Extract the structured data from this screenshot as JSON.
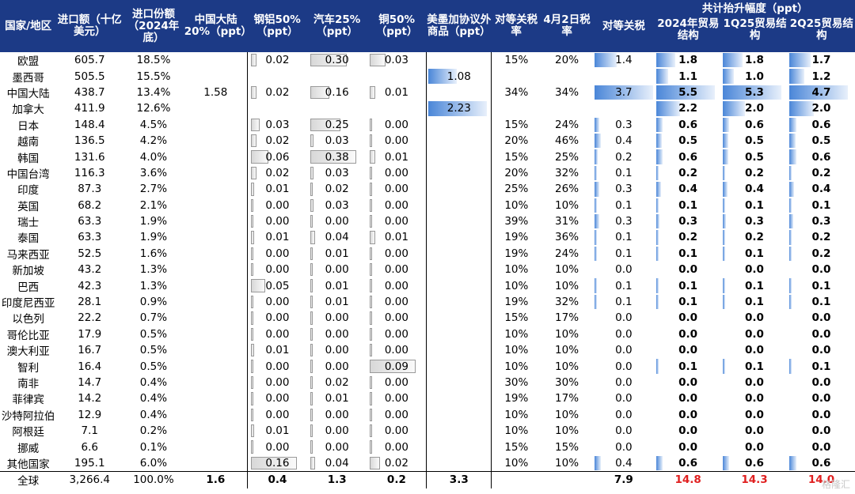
{
  "headers": {
    "country": "国家/地区",
    "import": "进口额（十亿美元）",
    "share": "进口份额（2024年底）",
    "china20": "中国大陆20%（ppt）",
    "steel": "钢铝50%（ppt）",
    "auto": "汽车25%（ppt）",
    "copper": "铜50%（ppt）",
    "usmca": "美墨加协议外商品（ppt）",
    "recip_rate": "对等关税率",
    "apr2": "4月2日税率",
    "recip": "对等关税",
    "total_group": "共计抬升幅度（ppt）",
    "y2024": "2024年贸易结构",
    "q1": "1Q25贸易结构",
    "q2": "2Q25贸易结构"
  },
  "rows": [
    {
      "name": "欧盟",
      "import": "605.7",
      "share": "18.5%",
      "china": "",
      "steel": "0.02",
      "auto": "0.30",
      "copper": "0.03",
      "usmca": "",
      "rate": "15%",
      "apr": "20%",
      "recip": "1.4",
      "t24": "1.8",
      "q1": "1.8",
      "q2": "1.7"
    },
    {
      "name": "墨西哥",
      "import": "505.5",
      "share": "15.5%",
      "china": "",
      "steel": "",
      "auto": "",
      "copper": "",
      "usmca": "1.08",
      "rate": "",
      "apr": "",
      "recip": "",
      "t24": "1.1",
      "q1": "1.0",
      "q2": "1.2"
    },
    {
      "name": "中国大陆",
      "import": "438.7",
      "share": "13.4%",
      "china": "1.58",
      "steel": "0.02",
      "auto": "0.16",
      "copper": "0.01",
      "usmca": "",
      "rate": "34%",
      "apr": "34%",
      "recip": "3.7",
      "t24": "5.5",
      "q1": "5.3",
      "q2": "4.7"
    },
    {
      "name": "加拿大",
      "import": "411.9",
      "share": "12.6%",
      "china": "",
      "steel": "",
      "auto": "",
      "copper": "",
      "usmca": "2.23",
      "rate": "",
      "apr": "",
      "recip": "",
      "t24": "2.2",
      "q1": "2.0",
      "q2": "2.0"
    },
    {
      "name": "日本",
      "import": "148.4",
      "share": "4.5%",
      "china": "",
      "steel": "0.03",
      "auto": "0.25",
      "copper": "0.00",
      "usmca": "",
      "rate": "15%",
      "apr": "24%",
      "recip": "0.3",
      "t24": "0.6",
      "q1": "0.6",
      "q2": "0.6"
    },
    {
      "name": "越南",
      "import": "136.5",
      "share": "4.2%",
      "china": "",
      "steel": "0.02",
      "auto": "0.03",
      "copper": "0.00",
      "usmca": "",
      "rate": "20%",
      "apr": "46%",
      "recip": "0.4",
      "t24": "0.5",
      "q1": "0.5",
      "q2": "0.5"
    },
    {
      "name": "韩国",
      "import": "131.6",
      "share": "4.0%",
      "china": "",
      "steel": "0.06",
      "auto": "0.38",
      "copper": "0.01",
      "usmca": "",
      "rate": "15%",
      "apr": "25%",
      "recip": "0.2",
      "t24": "0.6",
      "q1": "0.5",
      "q2": "0.6"
    },
    {
      "name": "中国台湾",
      "import": "116.3",
      "share": "3.6%",
      "china": "",
      "steel": "0.02",
      "auto": "0.03",
      "copper": "0.00",
      "usmca": "",
      "rate": "20%",
      "apr": "32%",
      "recip": "0.1",
      "t24": "0.2",
      "q1": "0.2",
      "q2": "0.2"
    },
    {
      "name": "印度",
      "import": "87.3",
      "share": "2.7%",
      "china": "",
      "steel": "0.01",
      "auto": "0.02",
      "copper": "0.00",
      "usmca": "",
      "rate": "25%",
      "apr": "26%",
      "recip": "0.3",
      "t24": "0.4",
      "q1": "0.4",
      "q2": "0.4"
    },
    {
      "name": "英国",
      "import": "68.2",
      "share": "2.1%",
      "china": "",
      "steel": "0.00",
      "auto": "0.03",
      "copper": "0.00",
      "usmca": "",
      "rate": "10%",
      "apr": "10%",
      "recip": "0.1",
      "t24": "0.1",
      "q1": "0.1",
      "q2": "0.1"
    },
    {
      "name": "瑞士",
      "import": "63.3",
      "share": "1.9%",
      "china": "",
      "steel": "0.00",
      "auto": "0.00",
      "copper": "0.00",
      "usmca": "",
      "rate": "39%",
      "apr": "31%",
      "recip": "0.3",
      "t24": "0.3",
      "q1": "0.3",
      "q2": "0.3"
    },
    {
      "name": "泰国",
      "import": "63.3",
      "share": "1.9%",
      "china": "",
      "steel": "0.01",
      "auto": "0.04",
      "copper": "0.01",
      "usmca": "",
      "rate": "19%",
      "apr": "36%",
      "recip": "0.1",
      "t24": "0.2",
      "q1": "0.2",
      "q2": "0.2"
    },
    {
      "name": "马来西亚",
      "import": "52.5",
      "share": "1.6%",
      "china": "",
      "steel": "0.00",
      "auto": "0.01",
      "copper": "0.00",
      "usmca": "",
      "rate": "19%",
      "apr": "24%",
      "recip": "0.1",
      "t24": "0.1",
      "q1": "0.1",
      "q2": "0.2"
    },
    {
      "name": "新加坡",
      "import": "43.2",
      "share": "1.3%",
      "china": "",
      "steel": "0.00",
      "auto": "0.00",
      "copper": "0.00",
      "usmca": "",
      "rate": "10%",
      "apr": "10%",
      "recip": "0.0",
      "t24": "0.0",
      "q1": "0.0",
      "q2": "0.0"
    },
    {
      "name": "巴西",
      "import": "42.3",
      "share": "1.3%",
      "china": "",
      "steel": "0.05",
      "auto": "0.01",
      "copper": "0.00",
      "usmca": "",
      "rate": "10%",
      "apr": "10%",
      "recip": "0.1",
      "t24": "0.1",
      "q1": "0.1",
      "q2": "0.1"
    },
    {
      "name": "印度尼西亚",
      "import": "28.1",
      "share": "0.9%",
      "china": "",
      "steel": "0.00",
      "auto": "0.01",
      "copper": "0.00",
      "usmca": "",
      "rate": "19%",
      "apr": "32%",
      "recip": "0.1",
      "t24": "0.1",
      "q1": "0.1",
      "q2": "0.1"
    },
    {
      "name": "以色列",
      "import": "22.2",
      "share": "0.7%",
      "china": "",
      "steel": "0.00",
      "auto": "0.00",
      "copper": "0.00",
      "usmca": "",
      "rate": "15%",
      "apr": "17%",
      "recip": "0.0",
      "t24": "0.0",
      "q1": "0.0",
      "q2": "0.0"
    },
    {
      "name": "哥伦比亚",
      "import": "17.9",
      "share": "0.5%",
      "china": "",
      "steel": "0.00",
      "auto": "0.00",
      "copper": "0.00",
      "usmca": "",
      "rate": "10%",
      "apr": "10%",
      "recip": "0.0",
      "t24": "0.0",
      "q1": "0.0",
      "q2": "0.0"
    },
    {
      "name": "澳大利亚",
      "import": "16.7",
      "share": "0.5%",
      "china": "",
      "steel": "0.01",
      "auto": "0.00",
      "copper": "0.00",
      "usmca": "",
      "rate": "10%",
      "apr": "10%",
      "recip": "0.0",
      "t24": "0.0",
      "q1": "0.0",
      "q2": "0.0"
    },
    {
      "name": "智利",
      "import": "16.4",
      "share": "0.5%",
      "china": "",
      "steel": "0.00",
      "auto": "0.00",
      "copper": "0.09",
      "usmca": "",
      "rate": "10%",
      "apr": "10%",
      "recip": "0.0",
      "t24": "0.1",
      "q1": "0.1",
      "q2": "0.1"
    },
    {
      "name": "南非",
      "import": "14.7",
      "share": "0.4%",
      "china": "",
      "steel": "0.00",
      "auto": "0.02",
      "copper": "0.00",
      "usmca": "",
      "rate": "30%",
      "apr": "30%",
      "recip": "0.0",
      "t24": "0.0",
      "q1": "0.0",
      "q2": "0.0"
    },
    {
      "name": "菲律宾",
      "import": "14.2",
      "share": "0.4%",
      "china": "",
      "steel": "0.00",
      "auto": "0.01",
      "copper": "0.00",
      "usmca": "",
      "rate": "19%",
      "apr": "17%",
      "recip": "0.0",
      "t24": "0.0",
      "q1": "0.0",
      "q2": "0.0"
    },
    {
      "name": "沙特阿拉伯",
      "import": "12.9",
      "share": "0.4%",
      "china": "",
      "steel": "0.00",
      "auto": "0.00",
      "copper": "0.00",
      "usmca": "",
      "rate": "10%",
      "apr": "10%",
      "recip": "0.0",
      "t24": "0.0",
      "q1": "0.0",
      "q2": "0.0"
    },
    {
      "name": "阿根廷",
      "import": "7.1",
      "share": "0.2%",
      "china": "",
      "steel": "0.01",
      "auto": "0.00",
      "copper": "0.00",
      "usmca": "",
      "rate": "10%",
      "apr": "10%",
      "recip": "0.0",
      "t24": "0.0",
      "q1": "0.0",
      "q2": "0.0"
    },
    {
      "name": "挪威",
      "import": "6.6",
      "share": "0.1%",
      "china": "",
      "steel": "0.00",
      "auto": "0.00",
      "copper": "0.00",
      "usmca": "",
      "rate": "15%",
      "apr": "15%",
      "recip": "0.0",
      "t24": "0.0",
      "q1": "0.0",
      "q2": "0.0"
    },
    {
      "name": "其他国家",
      "import": "195.1",
      "share": "6.0%",
      "china": "",
      "steel": "0.16",
      "auto": "0.04",
      "copper": "0.02",
      "usmca": "",
      "rate": "10%",
      "apr": "10%",
      "recip": "0.4",
      "t24": "0.6",
      "q1": "0.6",
      "q2": "0.6"
    }
  ],
  "total": {
    "name": "全球",
    "import": "3,266.4",
    "share": "100.0%",
    "china": "1.6",
    "steel": "0.4",
    "auto": "1.3",
    "copper": "0.2",
    "usmca": "3.3",
    "rate": "",
    "apr": "",
    "recip": "7.9",
    "t24": "14.8",
    "q1": "14.3",
    "q2": "14.0"
  },
  "watermark": "格隆汇",
  "colors": {
    "header_bg": "#1c3a86",
    "header_text": "#ffffff",
    "total_red": "#e02020",
    "bar_blue": "#4a86d8",
    "bar_gray": "#d8d8d8"
  },
  "bar_scales": {
    "steel": 0.16,
    "auto": 0.38,
    "copper": 0.09,
    "usmca": 2.23,
    "recip": 3.7,
    "t24": 5.5,
    "q1": 5.3,
    "q2": 4.7
  }
}
